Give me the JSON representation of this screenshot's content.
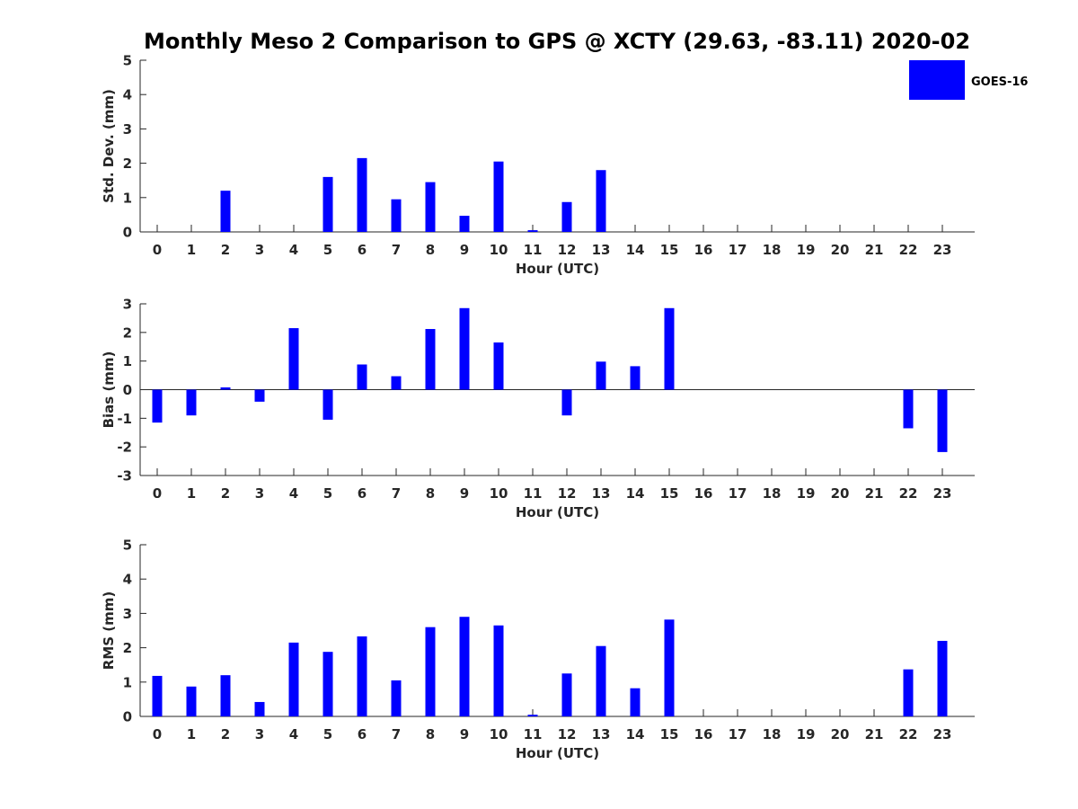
{
  "title": "Monthly Meso 2 Comparison to GPS @ XCTY (29.63, -83.11) 2020-02",
  "legend": {
    "label": "GOES-16",
    "color": "#0000ff",
    "placement": "top-right"
  },
  "chart_data": [
    {
      "type": "bar",
      "series_name": "GOES-16",
      "color": "#0000ff",
      "xlabel": "Hour (UTC)",
      "ylabel": "Std. Dev. (mm)",
      "ylim": [
        0,
        5
      ],
      "yticks": [
        0,
        1,
        2,
        3,
        4,
        5
      ],
      "categories": [
        "0",
        "1",
        "2",
        "3",
        "4",
        "5",
        "6",
        "7",
        "8",
        "9",
        "10",
        "11",
        "12",
        "13",
        "14",
        "15",
        "16",
        "17",
        "18",
        "19",
        "20",
        "21",
        "22",
        "23"
      ],
      "values": [
        null,
        null,
        1.2,
        null,
        null,
        1.6,
        2.15,
        0.95,
        1.45,
        0.47,
        2.05,
        0.05,
        0.87,
        1.8,
        null,
        null,
        null,
        null,
        null,
        null,
        null,
        null,
        null,
        null
      ]
    },
    {
      "type": "bar",
      "series_name": "GOES-16",
      "color": "#0000ff",
      "xlabel": "Hour (UTC)",
      "ylabel": "Bias (mm)",
      "ylim": [
        -3,
        3
      ],
      "yticks": [
        -3,
        -2,
        -1,
        0,
        1,
        2,
        3
      ],
      "categories": [
        "0",
        "1",
        "2",
        "3",
        "4",
        "5",
        "6",
        "7",
        "8",
        "9",
        "10",
        "11",
        "12",
        "13",
        "14",
        "15",
        "16",
        "17",
        "18",
        "19",
        "20",
        "21",
        "22",
        "23"
      ],
      "values": [
        -1.15,
        -0.9,
        0.08,
        -0.42,
        2.15,
        -1.05,
        0.88,
        0.47,
        2.12,
        2.85,
        1.65,
        null,
        -0.9,
        0.98,
        0.82,
        2.85,
        null,
        null,
        null,
        null,
        null,
        null,
        -1.35,
        -2.18
      ]
    },
    {
      "type": "bar",
      "series_name": "GOES-16",
      "color": "#0000ff",
      "xlabel": "Hour (UTC)",
      "ylabel": "RMS (mm)",
      "ylim": [
        0,
        5
      ],
      "yticks": [
        0,
        1,
        2,
        3,
        4,
        5
      ],
      "categories": [
        "0",
        "1",
        "2",
        "3",
        "4",
        "5",
        "6",
        "7",
        "8",
        "9",
        "10",
        "11",
        "12",
        "13",
        "14",
        "15",
        "16",
        "17",
        "18",
        "19",
        "20",
        "21",
        "22",
        "23"
      ],
      "values": [
        1.18,
        0.87,
        1.2,
        0.42,
        2.15,
        1.88,
        2.33,
        1.05,
        2.6,
        2.9,
        2.65,
        0.05,
        1.25,
        2.05,
        0.82,
        2.82,
        null,
        null,
        null,
        null,
        null,
        null,
        1.37,
        2.2
      ]
    }
  ]
}
